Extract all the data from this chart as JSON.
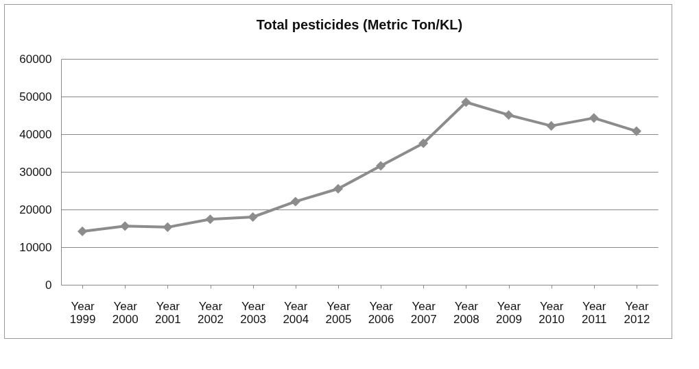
{
  "chart_data": {
    "type": "line",
    "title": "Total pesticides (Metric Ton/KL)",
    "categories": [
      "Year 1999",
      "Year 2000",
      "Year 2001",
      "Year 2002",
      "Year 2003",
      "Year 2004",
      "Year 2005",
      "Year 2006",
      "Year 2007",
      "Year 2008",
      "Year 2009",
      "Year 2010",
      "Year 2011",
      "Year 2012"
    ],
    "series": [
      {
        "color": "#8c8c8c",
        "values": [
          14200,
          15600,
          15300,
          17400,
          18000,
          22100,
          25500,
          31600,
          37600,
          48500,
          45100,
          42200,
          44300,
          40800
        ]
      }
    ],
    "ylim": [
      0,
      60000
    ],
    "yticks": [
      0,
      10000,
      20000,
      30000,
      40000,
      50000,
      60000
    ],
    "grid": "y",
    "legend": false,
    "marker": "diamond",
    "line_style": "solid"
  }
}
